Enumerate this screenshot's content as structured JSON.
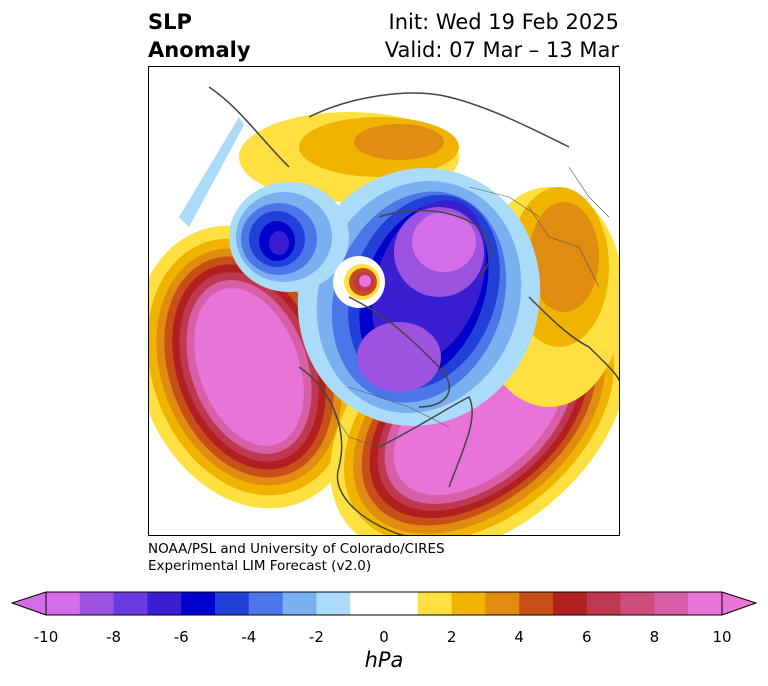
{
  "header": {
    "title_line1": "SLP",
    "title_line2": "Anomaly",
    "init": "Init: Wed 19 Feb 2025",
    "valid": "Valid: 07 Mar – 13 Mar"
  },
  "credit": {
    "line1": "NOAA/PSL and University of Colorado/CIRES",
    "line2": "Experimental LIM Forecast (v2.0)"
  },
  "colorbar": {
    "unit": "hPa",
    "ticks": [
      "-10",
      "-8",
      "-6",
      "-4",
      "-2",
      "0",
      "2",
      "4",
      "6",
      "8",
      "10"
    ],
    "colors": [
      "#d46de8",
      "#9d52e0",
      "#6b3be0",
      "#3a1fd0",
      "#0000cc",
      "#2240d8",
      "#4c75e8",
      "#7ab0f0",
      "#aadcfa",
      "#ffffff",
      "#ffffff",
      "#ffe040",
      "#f0b400",
      "#e08c10",
      "#c85018",
      "#b02020",
      "#c03850",
      "#cc4c7c",
      "#d65fa8",
      "#e874d8"
    ],
    "under_color": "#d46de8",
    "over_color": "#e874d8"
  },
  "map": {
    "projection": "polar-stereographic-north",
    "field": "sea level pressure anomaly"
  }
}
